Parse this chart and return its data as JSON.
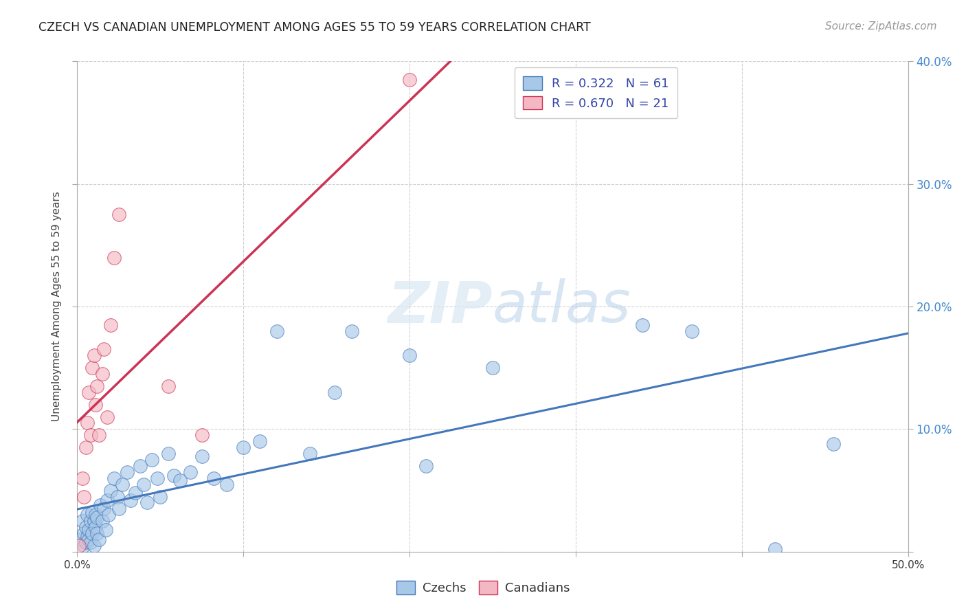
{
  "title": "CZECH VS CANADIAN UNEMPLOYMENT AMONG AGES 55 TO 59 YEARS CORRELATION CHART",
  "source": "Source: ZipAtlas.com",
  "ylabel": "Unemployment Among Ages 55 to 59 years",
  "xlim": [
    0,
    0.5
  ],
  "ylim": [
    0,
    0.4
  ],
  "xticks": [
    0.0,
    0.1,
    0.2,
    0.3,
    0.4,
    0.5
  ],
  "yticks": [
    0.0,
    0.1,
    0.2,
    0.3,
    0.4
  ],
  "xtick_labels": [
    "0.0%",
    "",
    "",
    "",
    "",
    "50.0%"
  ],
  "ytick_labels_right": [
    "",
    "10.0%",
    "20.0%",
    "30.0%",
    "40.0%"
  ],
  "background_color": "#ffffff",
  "grid_color": "#cccccc",
  "czechs_color": "#a8c8e8",
  "canadians_color": "#f4b8c4",
  "trend_czech_color": "#4477bb",
  "trend_canadian_color": "#cc3355",
  "legend_czech_label": "R = 0.322   N = 61",
  "legend_canadian_label": "R = 0.670   N = 21",
  "czechs_x": [
    0.002,
    0.003,
    0.004,
    0.004,
    0.005,
    0.005,
    0.006,
    0.006,
    0.007,
    0.007,
    0.008,
    0.008,
    0.009,
    0.009,
    0.01,
    0.01,
    0.011,
    0.011,
    0.012,
    0.012,
    0.013,
    0.014,
    0.015,
    0.016,
    0.017,
    0.018,
    0.019,
    0.02,
    0.022,
    0.024,
    0.025,
    0.027,
    0.03,
    0.032,
    0.035,
    0.038,
    0.04,
    0.042,
    0.045,
    0.048,
    0.05,
    0.055,
    0.058,
    0.062,
    0.068,
    0.075,
    0.082,
    0.09,
    0.1,
    0.11,
    0.12,
    0.14,
    0.155,
    0.165,
    0.2,
    0.21,
    0.25,
    0.34,
    0.37,
    0.42,
    0.455
  ],
  "czechs_y": [
    0.01,
    0.025,
    0.005,
    0.015,
    0.008,
    0.02,
    0.012,
    0.03,
    0.01,
    0.018,
    0.025,
    0.008,
    0.032,
    0.015,
    0.025,
    0.005,
    0.02,
    0.03,
    0.015,
    0.028,
    0.01,
    0.038,
    0.025,
    0.035,
    0.018,
    0.042,
    0.03,
    0.05,
    0.06,
    0.045,
    0.035,
    0.055,
    0.065,
    0.042,
    0.048,
    0.07,
    0.055,
    0.04,
    0.075,
    0.06,
    0.045,
    0.08,
    0.062,
    0.058,
    0.065,
    0.078,
    0.06,
    0.055,
    0.085,
    0.09,
    0.18,
    0.08,
    0.13,
    0.18,
    0.16,
    0.07,
    0.15,
    0.185,
    0.18,
    0.002,
    0.088
  ],
  "canadians_x": [
    0.001,
    0.003,
    0.004,
    0.005,
    0.006,
    0.007,
    0.008,
    0.009,
    0.01,
    0.011,
    0.012,
    0.013,
    0.015,
    0.016,
    0.018,
    0.02,
    0.022,
    0.025,
    0.055,
    0.075,
    0.2
  ],
  "canadians_y": [
    0.005,
    0.06,
    0.045,
    0.085,
    0.105,
    0.13,
    0.095,
    0.15,
    0.16,
    0.12,
    0.135,
    0.095,
    0.145,
    0.165,
    0.11,
    0.185,
    0.24,
    0.275,
    0.135,
    0.095,
    0.385
  ]
}
